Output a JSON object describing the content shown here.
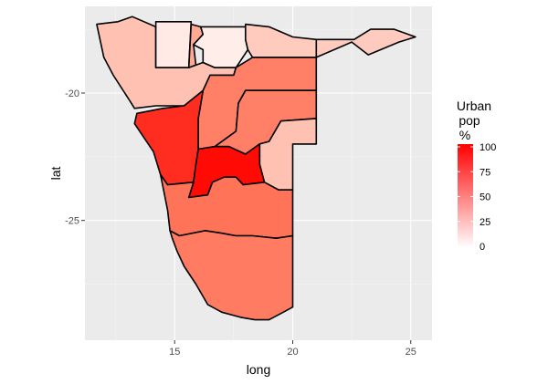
{
  "chart_data": {
    "type": "choropleth",
    "xlabel": "long",
    "ylabel": "lat",
    "xlim": [
      11.2,
      25.9
    ],
    "ylim": [
      -29.7,
      -16.6
    ],
    "x_ticks": [
      15,
      20,
      25
    ],
    "y_ticks": [
      -20,
      -25
    ],
    "x_tick_labels": [
      "15",
      "20",
      "25"
    ],
    "y_tick_labels": [
      "-20",
      "-25"
    ],
    "grid": true,
    "legend": {
      "title_lines": [
        "Urban",
        "pop",
        "%"
      ],
      "position": "right",
      "ticks": [
        100,
        75,
        50,
        25,
        0
      ],
      "tick_labels": [
        "100",
        "75",
        "50",
        "25",
        "0"
      ],
      "low_color": "#ffffff",
      "high_color": "#ff0000"
    },
    "regions": [
      {
        "value": 30,
        "color": "#ffc2b2",
        "points": [
          [
            11.7,
            -17.3
          ],
          [
            12.6,
            -17.2
          ],
          [
            13.2,
            -17.0
          ],
          [
            14.2,
            -17.4
          ],
          [
            14.2,
            -19.0
          ],
          [
            15.6,
            -19.0
          ],
          [
            16.2,
            -18.8
          ],
          [
            16.7,
            -19.0
          ],
          [
            17.6,
            -19.0
          ],
          [
            17.5,
            -19.3
          ],
          [
            16.5,
            -19.3
          ],
          [
            16.2,
            -19.9
          ],
          [
            15.4,
            -20.5
          ],
          [
            14.2,
            -20.5
          ],
          [
            13.3,
            -20.6
          ],
          [
            13.1,
            -20.3
          ],
          [
            12.4,
            -19.3
          ],
          [
            12.0,
            -18.6
          ],
          [
            11.7,
            -17.3
          ]
        ]
      },
      {
        "value": 8,
        "color": "#ffeae5",
        "points": [
          [
            14.2,
            -17.2
          ],
          [
            15.7,
            -17.2
          ],
          [
            15.6,
            -19.0
          ],
          [
            14.2,
            -19.0
          ],
          [
            14.2,
            -17.2
          ]
        ]
      },
      {
        "value": 40,
        "color": "#ffa993",
        "points": [
          [
            15.7,
            -17.3
          ],
          [
            16.1,
            -17.4
          ],
          [
            16.2,
            -17.7
          ],
          [
            15.8,
            -18.1
          ],
          [
            15.9,
            -18.9
          ],
          [
            15.6,
            -19.0
          ],
          [
            15.7,
            -17.3
          ]
        ]
      },
      {
        "value": 7,
        "color": "#ffedea",
        "points": [
          [
            16.1,
            -17.4
          ],
          [
            17.0,
            -17.4
          ],
          [
            18.0,
            -17.4
          ],
          [
            18.0,
            -17.9
          ],
          [
            18.1,
            -18.3
          ],
          [
            17.6,
            -19.0
          ],
          [
            16.7,
            -19.0
          ],
          [
            16.2,
            -18.8
          ],
          [
            16.2,
            -18.3
          ],
          [
            15.8,
            -18.1
          ],
          [
            16.2,
            -17.7
          ],
          [
            16.1,
            -17.4
          ]
        ]
      },
      {
        "value": 25,
        "color": "#ffcbbe",
        "points": [
          [
            18.0,
            -17.3
          ],
          [
            19.0,
            -17.4
          ],
          [
            20.0,
            -17.8
          ],
          [
            21.0,
            -17.9
          ],
          [
            21.0,
            -18.6
          ],
          [
            18.3,
            -18.6
          ],
          [
            18.1,
            -18.3
          ],
          [
            18.0,
            -17.9
          ],
          [
            18.0,
            -17.3
          ]
        ]
      },
      {
        "value": 25,
        "color": "#ffcbbe",
        "points": [
          [
            21.0,
            -17.9
          ],
          [
            22.6,
            -17.9
          ],
          [
            23.3,
            -17.5
          ],
          [
            24.3,
            -17.5
          ],
          [
            25.2,
            -17.8
          ],
          [
            24.5,
            -18.0
          ],
          [
            23.2,
            -18.5
          ],
          [
            22.5,
            -18.0
          ],
          [
            21.0,
            -18.6
          ],
          [
            21.0,
            -17.9
          ]
        ]
      },
      {
        "value": 60,
        "color": "#ff8066",
        "points": [
          [
            17.6,
            -19.0
          ],
          [
            18.3,
            -18.6
          ],
          [
            21.0,
            -18.6
          ],
          [
            21.0,
            -19.9
          ],
          [
            18.0,
            -19.9
          ],
          [
            17.7,
            -20.4
          ],
          [
            17.6,
            -21.5
          ],
          [
            16.7,
            -22.1
          ],
          [
            16.0,
            -22.2
          ],
          [
            16.0,
            -21.0
          ],
          [
            16.2,
            -19.9
          ],
          [
            16.5,
            -19.3
          ],
          [
            17.5,
            -19.3
          ],
          [
            17.6,
            -19.0
          ]
        ]
      },
      {
        "value": 60,
        "color": "#ff8066",
        "points": [
          [
            18.0,
            -19.9
          ],
          [
            21.0,
            -19.9
          ],
          [
            21.0,
            -21.0
          ],
          [
            19.5,
            -21.1
          ],
          [
            19.0,
            -21.9
          ],
          [
            18.6,
            -22.0
          ],
          [
            18.0,
            -22.4
          ],
          [
            17.3,
            -22.1
          ],
          [
            16.7,
            -22.1
          ],
          [
            17.6,
            -21.5
          ],
          [
            17.7,
            -20.4
          ],
          [
            18.0,
            -19.9
          ]
        ]
      },
      {
        "value": 30,
        "color": "#ffc2b2",
        "points": [
          [
            19.5,
            -21.1
          ],
          [
            21.0,
            -21.0
          ],
          [
            21.0,
            -22.0
          ],
          [
            20.0,
            -22.0
          ],
          [
            20.0,
            -23.8
          ],
          [
            19.4,
            -23.8
          ],
          [
            18.8,
            -23.5
          ],
          [
            18.6,
            -22.8
          ],
          [
            18.6,
            -22.0
          ],
          [
            19.0,
            -21.9
          ],
          [
            19.5,
            -21.1
          ]
        ]
      },
      {
        "value": 88,
        "color": "#ff2d1f",
        "points": [
          [
            13.4,
            -20.8
          ],
          [
            14.5,
            -20.6
          ],
          [
            15.4,
            -20.5
          ],
          [
            16.2,
            -19.9
          ],
          [
            16.0,
            -21.0
          ],
          [
            16.0,
            -22.2
          ],
          [
            15.9,
            -22.8
          ],
          [
            15.8,
            -23.5
          ],
          [
            14.7,
            -23.6
          ],
          [
            14.4,
            -23.2
          ],
          [
            14.1,
            -22.3
          ],
          [
            13.3,
            -21.2
          ],
          [
            13.4,
            -20.8
          ]
        ]
      },
      {
        "value": 98,
        "color": "#ff0a05",
        "points": [
          [
            16.0,
            -22.2
          ],
          [
            16.7,
            -22.1
          ],
          [
            17.3,
            -22.1
          ],
          [
            18.0,
            -22.4
          ],
          [
            18.6,
            -22.0
          ],
          [
            18.6,
            -22.8
          ],
          [
            18.8,
            -23.5
          ],
          [
            17.9,
            -23.6
          ],
          [
            17.6,
            -23.3
          ],
          [
            17.1,
            -23.3
          ],
          [
            16.6,
            -23.5
          ],
          [
            16.4,
            -24.0
          ],
          [
            15.6,
            -24.1
          ],
          [
            15.8,
            -23.5
          ],
          [
            15.9,
            -22.8
          ],
          [
            16.0,
            -22.2
          ]
        ]
      },
      {
        "value": 65,
        "color": "#ff7459",
        "points": [
          [
            14.4,
            -23.2
          ],
          [
            14.7,
            -23.6
          ],
          [
            15.8,
            -23.5
          ],
          [
            15.6,
            -24.1
          ],
          [
            16.4,
            -24.0
          ],
          [
            16.6,
            -23.5
          ],
          [
            17.1,
            -23.3
          ],
          [
            17.6,
            -23.3
          ],
          [
            17.9,
            -23.6
          ],
          [
            18.8,
            -23.5
          ],
          [
            19.4,
            -23.8
          ],
          [
            20.0,
            -23.8
          ],
          [
            20.0,
            -25.6
          ],
          [
            19.3,
            -25.7
          ],
          [
            18.3,
            -25.6
          ],
          [
            17.6,
            -25.6
          ],
          [
            17.0,
            -25.5
          ],
          [
            16.3,
            -25.4
          ],
          [
            15.2,
            -25.6
          ],
          [
            14.8,
            -25.4
          ],
          [
            14.7,
            -24.6
          ],
          [
            14.4,
            -23.2
          ]
        ]
      },
      {
        "value": 62,
        "color": "#ff7b61",
        "points": [
          [
            14.8,
            -25.4
          ],
          [
            15.2,
            -25.6
          ],
          [
            16.3,
            -25.4
          ],
          [
            17.0,
            -25.5
          ],
          [
            17.6,
            -25.6
          ],
          [
            18.3,
            -25.6
          ],
          [
            19.3,
            -25.7
          ],
          [
            20.0,
            -25.6
          ],
          [
            20.0,
            -28.4
          ],
          [
            19.6,
            -28.6
          ],
          [
            19.0,
            -28.9
          ],
          [
            18.4,
            -28.9
          ],
          [
            17.8,
            -28.8
          ],
          [
            17.0,
            -28.6
          ],
          [
            16.4,
            -28.3
          ],
          [
            15.9,
            -27.5
          ],
          [
            15.4,
            -26.8
          ],
          [
            15.1,
            -26.2
          ],
          [
            14.9,
            -25.7
          ],
          [
            14.8,
            -25.4
          ]
        ]
      }
    ]
  }
}
